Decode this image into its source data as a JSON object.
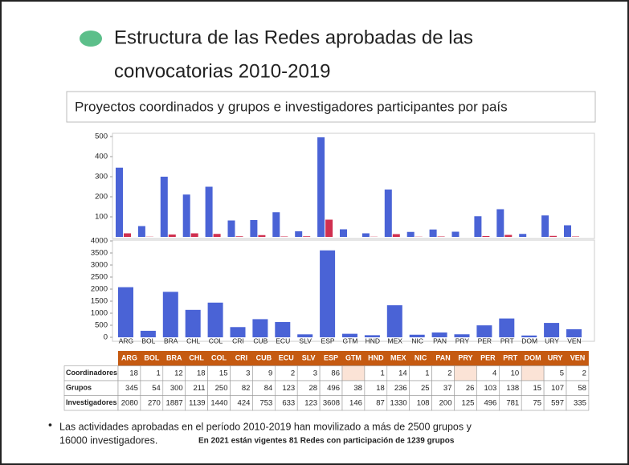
{
  "title_lines": [
    "Estructura de las Redes aprobadas de las",
    "convocatorias 2010-2019"
  ],
  "subtitle": "Proyectos coordinados y grupos e investigadores participantes por país",
  "chart_data": [
    {
      "type": "bar",
      "categories": [
        "ARG",
        "BOL",
        "BRA",
        "CHL",
        "COL",
        "CRI",
        "CUB",
        "ECU",
        "SLV",
        "ESP",
        "GTM",
        "HND",
        "MEX",
        "NIC",
        "PAN",
        "PRY",
        "PER",
        "PRT",
        "DOM",
        "URY",
        "VEN"
      ],
      "series": [
        {
          "name": "Grupos",
          "color": "#4a63d6",
          "values": [
            345,
            54,
            300,
            211,
            250,
            82,
            84,
            123,
            28,
            496,
            38,
            18,
            236,
            25,
            37,
            26,
            103,
            138,
            15,
            107,
            58
          ]
        },
        {
          "name": "Coordinadores",
          "color": "#d03050",
          "values": [
            18,
            1,
            12,
            18,
            15,
            3,
            9,
            2,
            3,
            86,
            null,
            1,
            14,
            1,
            2,
            null,
            4,
            10,
            null,
            5,
            2
          ]
        }
      ],
      "ylim": [
        0,
        500
      ],
      "yticks": [
        100,
        200,
        300,
        400,
        500
      ]
    },
    {
      "type": "bar",
      "categories": [
        "ARG",
        "BOL",
        "BRA",
        "CHL",
        "COL",
        "CRI",
        "CUB",
        "ECU",
        "SLV",
        "ESP",
        "GTM",
        "HND",
        "MEX",
        "NIC",
        "PAN",
        "PRY",
        "PER",
        "PRT",
        "DOM",
        "URY",
        "VEN"
      ],
      "series": [
        {
          "name": "Investigadores",
          "color": "#4a63d6",
          "values": [
            2080,
            270,
            1887,
            1139,
            1440,
            424,
            753,
            633,
            123,
            3608,
            146,
            87,
            1330,
            108,
            200,
            125,
            496,
            781,
            75,
            597,
            335
          ]
        }
      ],
      "ylim": [
        0,
        4000
      ],
      "yticks": [
        0,
        500,
        1000,
        1500,
        2000,
        2500,
        3000,
        3500,
        4000
      ]
    }
  ],
  "bullet": {
    "text": "Las actividades aprobadas en el período 2010-2019 han movilizado a más de 2500 grupos y",
    "text2": "16000 investigadores.",
    "note": "En 2021 están vigentes 81 Redes con participación de 1239 grupos"
  }
}
